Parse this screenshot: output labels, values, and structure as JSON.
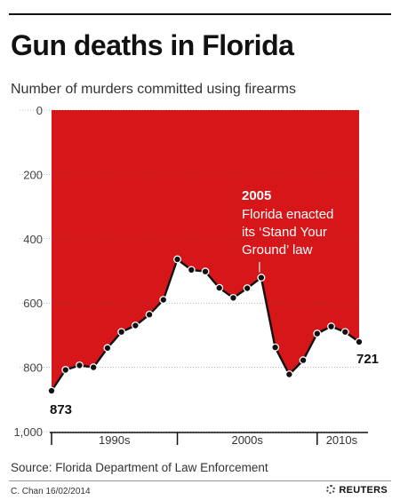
{
  "header": {
    "title": "Gun deaths in Florida",
    "subtitle": "Number of murders committed using firearms"
  },
  "chart_data": {
    "type": "area",
    "title": "Gun deaths in Florida",
    "subtitle": "Number of murders committed using firearms",
    "y_inverted": true,
    "ylim": [
      0,
      1000
    ],
    "yticks": [
      0,
      200,
      400,
      600,
      800,
      1000
    ],
    "ytick_labels": [
      "0",
      "200",
      "400",
      "600",
      "800",
      "1,000"
    ],
    "x": [
      1990,
      1991,
      1992,
      1993,
      1994,
      1995,
      1996,
      1997,
      1998,
      1999,
      2000,
      2001,
      2002,
      2003,
      2004,
      2005,
      2006,
      2007,
      2008,
      2009,
      2010,
      2011,
      2012
    ],
    "values": [
      873,
      808,
      794,
      800,
      740,
      690,
      670,
      636,
      590,
      464,
      497,
      502,
      553,
      584,
      554,
      521,
      738,
      822,
      778,
      695,
      673,
      690,
      721
    ],
    "xlim": [
      1990,
      2012
    ],
    "x_groups": [
      {
        "label": "1990s",
        "start": 1990,
        "end": 1999
      },
      {
        "label": "2000s",
        "start": 1999,
        "end": 2009
      },
      {
        "label": "2010s",
        "start": 2009,
        "end": 2012
      }
    ],
    "grid": true,
    "fill_color": "#d7161a",
    "line_color": "#111111",
    "point_labels": [
      {
        "x": 1990,
        "text": "873"
      },
      {
        "x": 2012,
        "text": "721"
      }
    ],
    "annotation": {
      "x": 2005,
      "heading": "2005",
      "lines": [
        "Florida enacted",
        "its ‘Stand Your",
        "Ground’ law"
      ]
    }
  },
  "footer": {
    "source": "Source: Florida Department of Law Enforcement",
    "credit": "C. Chan  16/02/2014",
    "brand": "REUTERS"
  }
}
